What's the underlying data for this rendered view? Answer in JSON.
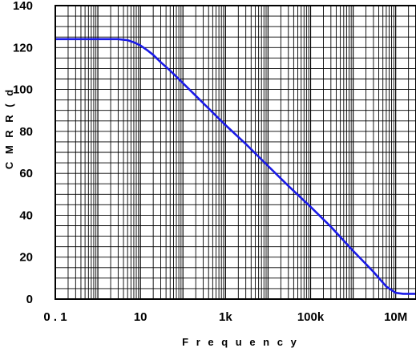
{
  "chart_data": {
    "type": "line",
    "title": "",
    "xlabel": "F r e q u e n c y",
    "ylabel": "C M R R ( d",
    "x_scale": "log",
    "xlim": [
      0.1,
      30000000
    ],
    "ylim": [
      0,
      140
    ],
    "grid": true,
    "x_ticks": [
      {
        "value": 0.1,
        "label": "0 . 1"
      },
      {
        "value": 10,
        "label": "10"
      },
      {
        "value": 1000,
        "label": "1k"
      },
      {
        "value": 100000,
        "label": "100k"
      },
      {
        "value": 10000000,
        "label": "10M"
      }
    ],
    "y_ticks": [
      {
        "value": 0,
        "label": "0"
      },
      {
        "value": 20,
        "label": "20"
      },
      {
        "value": 40,
        "label": "40"
      },
      {
        "value": 60,
        "label": "60"
      },
      {
        "value": 80,
        "label": "80"
      },
      {
        "value": 100,
        "label": "100"
      },
      {
        "value": 120,
        "label": "120"
      },
      {
        "value": 140,
        "label": "140"
      }
    ],
    "series": [
      {
        "color": "#1a1ae6",
        "x": [
          0.1,
          1,
          3,
          5,
          7,
          10,
          15,
          20,
          30,
          50,
          100,
          200,
          500,
          1000,
          3000,
          10000,
          30000,
          100000,
          300000,
          1000000,
          3000000,
          6000000,
          10000000,
          15000000,
          20000000,
          30000000
        ],
        "y": [
          124,
          124,
          124,
          123.5,
          122.5,
          121,
          118.5,
          116.5,
          113,
          109,
          103,
          97,
          89,
          83,
          74,
          63.5,
          54,
          44,
          34.5,
          23,
          13,
          6,
          3,
          2.5,
          2.5,
          2.5
        ]
      }
    ]
  }
}
